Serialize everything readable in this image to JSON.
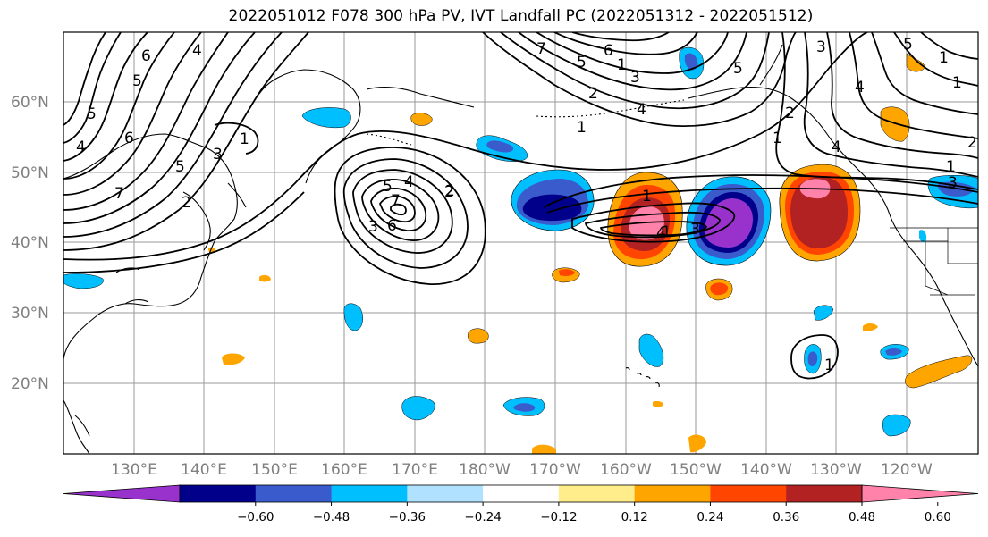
{
  "title": "2022051012 F078 300 hPa PV, IVT Landfall PC (2022051312 - 2022051512)",
  "map": {
    "lat_labels": [
      "60°N",
      "50°N",
      "40°N",
      "30°N",
      "20°N"
    ],
    "lon_labels": [
      "130°E",
      "140°E",
      "150°E",
      "160°E",
      "170°E",
      "180°W",
      "170°W",
      "160°W",
      "150°W",
      "140°W",
      "130°W",
      "120°W"
    ],
    "contour_labels": [
      "5",
      "6",
      "5",
      "4",
      "7",
      "6",
      "5",
      "1",
      "2",
      "3",
      "4",
      "5",
      "6",
      "7",
      "1",
      "2",
      "3",
      "4",
      "5",
      "1",
      "2",
      "3",
      "4",
      "5",
      "6",
      "7",
      "1",
      "2",
      "3",
      "4",
      "5",
      "1",
      "1",
      "2",
      "4",
      "3",
      "1",
      "1",
      "4",
      "3",
      "2",
      "1",
      "1"
    ]
  },
  "colorbar": {
    "colors": [
      "#9932cc",
      "#00008b",
      "#3a5bcc",
      "#00bfff",
      "#b0e2ff",
      "#ffffff",
      "#ffec8b",
      "#ffa500",
      "#ff4500",
      "#b22222",
      "#ff82ab"
    ],
    "tick_labels": [
      "−0.60",
      "−0.48",
      "−0.36",
      "−0.24",
      "−0.12",
      "0.12",
      "0.24",
      "0.36",
      "0.48",
      "0.60"
    ]
  }
}
